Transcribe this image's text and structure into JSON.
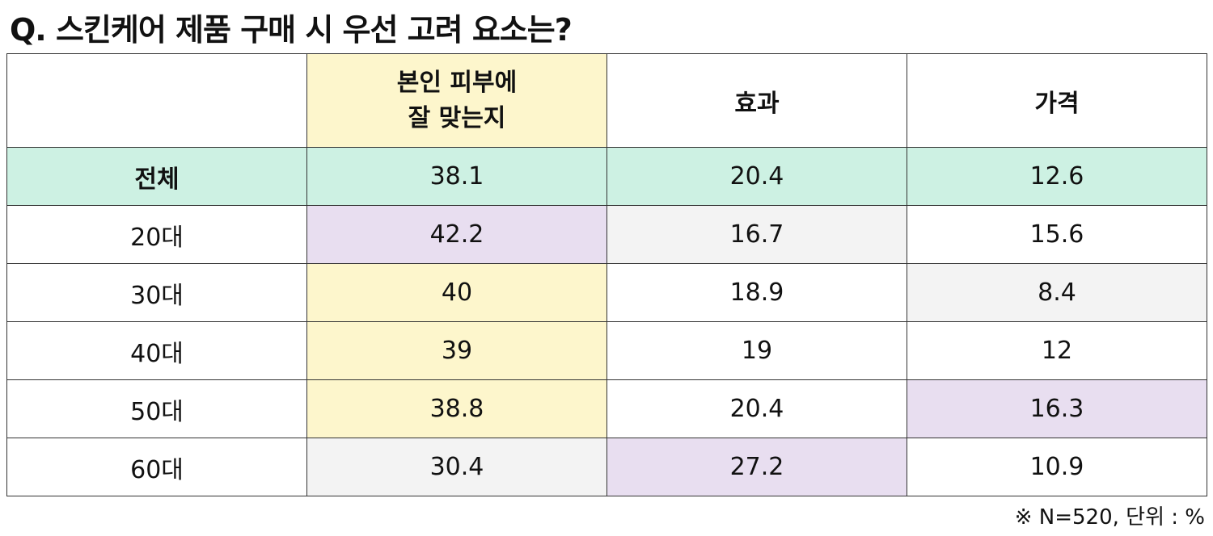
{
  "title": "Q. 스킨케어 제품 구매 시 우선 고려 요소는?",
  "colors": {
    "highlight_yellow": "#fdf6cc",
    "highlight_purple": "#e8def0",
    "highlight_gray": "#f3f3f3",
    "total_row_green": "#cdf1e3"
  },
  "table": {
    "columns": [
      {
        "line1": "본인  피부에",
        "line2": "잘  맞는지"
      },
      {
        "label": "효과"
      },
      {
        "label": "가격"
      }
    ],
    "rows": [
      {
        "label": "전체",
        "values": [
          "38.1",
          "20.4",
          "12.6"
        ]
      },
      {
        "label": "20대",
        "values": [
          "42.2",
          "16.7",
          "15.6"
        ]
      },
      {
        "label": "30대",
        "values": [
          "40",
          "18.9",
          "8.4"
        ]
      },
      {
        "label": "40대",
        "values": [
          "39",
          "19",
          "12"
        ]
      },
      {
        "label": "50대",
        "values": [
          "38.8",
          "20.4",
          "16.3"
        ]
      },
      {
        "label": "60대",
        "values": [
          "30.4",
          "27.2",
          "10.9"
        ]
      }
    ]
  },
  "note": "※ N=520,  단위 : %"
}
